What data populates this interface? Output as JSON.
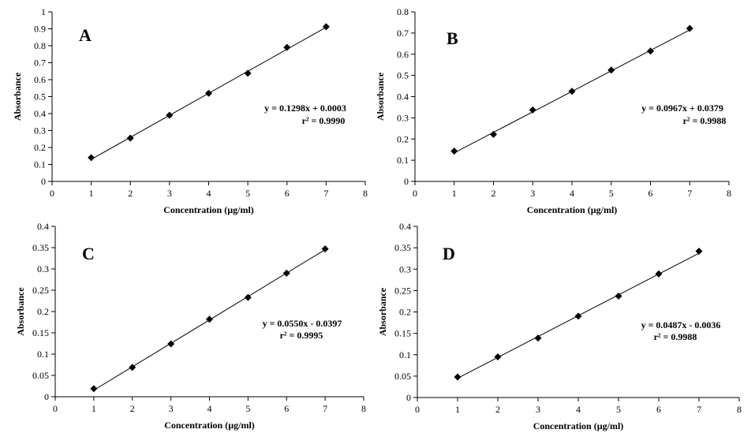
{
  "chart_data": [
    {
      "type": "scatter",
      "panel_label": "A",
      "xlabel": "Concentration  (µg/ml)",
      "ylabel": "Absorbance",
      "xlim": [
        0,
        8
      ],
      "ylim": [
        0,
        1
      ],
      "xticks": [
        "0",
        "1",
        "2",
        "3",
        "4",
        "5",
        "6",
        "7",
        "8"
      ],
      "yticks": [
        "0",
        "0.1",
        "0.2",
        "0.3",
        "0.4",
        "0.5",
        "0.6",
        "0.7",
        "0.8",
        "0.9",
        "1"
      ],
      "x": [
        1,
        2,
        3,
        4,
        5,
        6,
        7
      ],
      "y": [
        0.14,
        0.255,
        0.39,
        0.52,
        0.638,
        0.79,
        0.912
      ],
      "trendline": {
        "slope": 0.1298,
        "intercept": 0.0003
      },
      "equation": "y = 0.1298x + 0.0003",
      "r2": "r² = 0.9990",
      "grid": false,
      "legend": "none",
      "marker": "diamond",
      "color": "#000000"
    },
    {
      "type": "scatter",
      "panel_label": "B",
      "xlabel": "Concentration  (µg/ml)",
      "ylabel": "Absorbance",
      "xlim": [
        0,
        8
      ],
      "ylim": [
        0,
        0.8
      ],
      "xticks": [
        "0",
        "1",
        "2",
        "3",
        "4",
        "5",
        "6",
        "7",
        "8"
      ],
      "yticks": [
        "0",
        "0.1",
        "0.2",
        "0.3",
        "0.4",
        "0.5",
        "0.6",
        "0.7",
        "0.8"
      ],
      "x": [
        1,
        2,
        3,
        4,
        5,
        6,
        7
      ],
      "y": [
        0.143,
        0.222,
        0.337,
        0.425,
        0.525,
        0.615,
        0.722
      ],
      "trendline": {
        "slope": 0.0967,
        "intercept": 0.0379
      },
      "equation": "y = 0.0967x + 0.0379",
      "r2": "r² = 0.9988",
      "grid": false,
      "legend": "none",
      "marker": "diamond",
      "color": "#000000"
    },
    {
      "type": "scatter",
      "panel_label": "C",
      "xlabel": "Concentration  (µg/ml)",
      "ylabel": "Absorbance",
      "xlim": [
        0,
        8
      ],
      "ylim": [
        0,
        0.4
      ],
      "xticks": [
        "0",
        "1",
        "2",
        "3",
        "4",
        "5",
        "6",
        "7",
        "8"
      ],
      "yticks": [
        "0",
        "0.05",
        "0.1",
        "0.15",
        "0.2",
        "0.25",
        "0.3",
        "0.35",
        "0.4"
      ],
      "x": [
        1,
        2,
        3,
        4,
        5,
        6,
        7
      ],
      "y": [
        0.019,
        0.069,
        0.124,
        0.182,
        0.233,
        0.29,
        0.347
      ],
      "trendline": {
        "slope": 0.055,
        "intercept": -0.0397
      },
      "equation": "y = 0.0550x - 0.0397",
      "r2": "r² = 0.9995",
      "grid": false,
      "legend": "none",
      "marker": "diamond",
      "color": "#000000"
    },
    {
      "type": "scatter",
      "panel_label": "D",
      "xlabel": "Concentration  (µg/ml)",
      "ylabel": "Absorbance",
      "xlim": [
        0,
        8
      ],
      "ylim": [
        0,
        0.4
      ],
      "xticks": [
        "0",
        "1",
        "2",
        "3",
        "4",
        "5",
        "6",
        "7",
        "8"
      ],
      "yticks": [
        "0",
        "0.05",
        "0.1",
        "0.15",
        "0.2",
        "0.25",
        "0.3",
        "0.35",
        "0.4"
      ],
      "x": [
        1,
        2,
        3,
        4,
        5,
        6,
        7
      ],
      "y": [
        0.048,
        0.095,
        0.139,
        0.19,
        0.237,
        0.289,
        0.342
      ],
      "trendline": {
        "slope": 0.0487,
        "intercept": -0.0036
      },
      "equation": "y = 0.0487x - 0.0036",
      "r2": "r² = 0.9988",
      "grid": false,
      "legend": "none",
      "marker": "diamond",
      "color": "#000000"
    }
  ]
}
